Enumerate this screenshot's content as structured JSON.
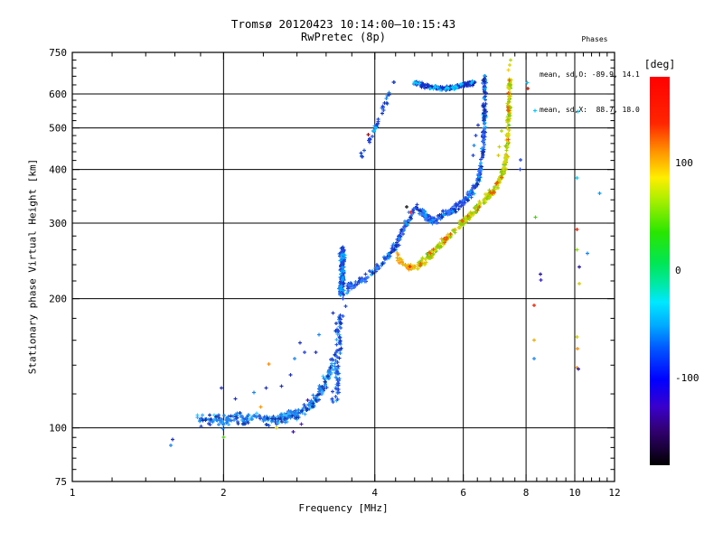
{
  "title": {
    "line1": "Tromsø 20120423 10:14:00–10:15:43",
    "line2": "RwPretec (8p)"
  },
  "annotation": {
    "header": "Phases",
    "line_o": "mean, sd,O: -89.9, 14.1",
    "line_x": "mean, sd,X:  88.7, 18.0"
  },
  "colorbar": {
    "title": "[deg]",
    "range": [
      180,
      -180
    ],
    "ticks": [
      {
        "value": 100,
        "label": "100"
      },
      {
        "value": 0,
        "label": "0"
      },
      {
        "value": -100,
        "label": "-100"
      }
    ],
    "stops": [
      {
        "p": 0,
        "c": "#ff0000"
      },
      {
        "p": 12,
        "c": "#ff2600"
      },
      {
        "p": 19,
        "c": "#ff9000"
      },
      {
        "p": 26,
        "c": "#ffee00"
      },
      {
        "p": 32,
        "c": "#a6ee00"
      },
      {
        "p": 40,
        "c": "#2ae600"
      },
      {
        "p": 48,
        "c": "#00e655"
      },
      {
        "p": 54,
        "c": "#00e8b0"
      },
      {
        "p": 58,
        "c": "#00e8ff"
      },
      {
        "p": 64,
        "c": "#00aaff"
      },
      {
        "p": 70,
        "c": "#0055ff"
      },
      {
        "p": 78,
        "c": "#0000ff"
      },
      {
        "p": 85,
        "c": "#3a00cc"
      },
      {
        "p": 91,
        "c": "#320072"
      },
      {
        "p": 96,
        "c": "#180035"
      },
      {
        "p": 100,
        "c": "#000000"
      }
    ]
  },
  "chart_data": {
    "type": "scatter",
    "xlabel": "Frequency [MHz]",
    "ylabel": "Stationary phase Virtual Height [km]",
    "x_scale": "log",
    "y_scale": "log",
    "xlim": [
      1,
      12
    ],
    "ylim": [
      75,
      750
    ],
    "grid": true,
    "x_ticks": [
      {
        "v": 1,
        "label": "1"
      },
      {
        "v": 2,
        "label": "2"
      },
      {
        "v": 4,
        "label": "4"
      },
      {
        "v": 6,
        "label": "6"
      },
      {
        "v": 8,
        "label": "8"
      },
      {
        "v": 10,
        "label": "10"
      },
      {
        "v": 12,
        "label": "12"
      }
    ],
    "x_minor": [
      1.2,
      1.4,
      1.6,
      1.8,
      2.4,
      2.8,
      3.2,
      3.6,
      4.4,
      4.8,
      5.2,
      5.6,
      6.4,
      6.8,
      7.2,
      7.6,
      8.4,
      8.8,
      9.2,
      9.6,
      10.4,
      10.8,
      11.2,
      11.6
    ],
    "y_ticks": [
      {
        "v": 750,
        "label": "750"
      },
      {
        "v": 600,
        "label": "600"
      },
      {
        "v": 500,
        "label": "500"
      },
      {
        "v": 400,
        "label": "400"
      },
      {
        "v": 300,
        "label": "300"
      },
      {
        "v": 200,
        "label": "200"
      },
      {
        "v": 100,
        "label": "100"
      },
      {
        "v": 75,
        "label": "75"
      }
    ],
    "y_minor": [
      80,
      85,
      90,
      95,
      120,
      140,
      160,
      180,
      220,
      240,
      260,
      280,
      320,
      340,
      360,
      380,
      420,
      440,
      460,
      480,
      520,
      540,
      560,
      580,
      630,
      660,
      690,
      720
    ],
    "x_gridlines": [
      2,
      4,
      6,
      8,
      10
    ],
    "y_gridlines": [
      100,
      200,
      300,
      400,
      500,
      600
    ],
    "traces": [
      {
        "name": "e-region-band",
        "n": 300,
        "jf": 0.012,
        "jh": 0.035,
        "colors": [
          "#1c86ee",
          "#2255dd",
          "#1c86ee",
          "#2244cc",
          "#33ccff",
          "#1c86ee",
          "#1133aa",
          "#2255dd",
          "#33aaff"
        ],
        "anchors": [
          [
            1.78,
            104
          ],
          [
            1.9,
            105
          ],
          [
            2.0,
            103
          ],
          [
            2.1,
            106
          ],
          [
            2.2,
            104
          ],
          [
            2.35,
            107
          ],
          [
            2.5,
            104
          ],
          [
            2.65,
            106
          ],
          [
            2.8,
            108
          ],
          [
            2.95,
            112
          ],
          [
            3.05,
            117
          ],
          [
            3.15,
            124
          ],
          [
            3.25,
            133
          ],
          [
            3.3,
            143
          ]
        ]
      },
      {
        "name": "es-column-lower",
        "n": 85,
        "jf": 0.015,
        "jh": 0.055,
        "colors": [
          "#2244dd",
          "#1c86ee",
          "#1133bb",
          "#2255ee",
          "#33aaff"
        ],
        "anchors": [
          [
            3.32,
            115
          ],
          [
            3.38,
            126
          ],
          [
            3.35,
            140
          ],
          [
            3.4,
            155
          ],
          [
            3.38,
            170
          ],
          [
            3.42,
            183
          ]
        ]
      },
      {
        "name": "es-column-upper",
        "n": 140,
        "jf": 0.012,
        "jh": 0.04,
        "colors": [
          "#2244dd",
          "#1133bb",
          "#2255ee",
          "#1c86ee",
          "#2244dd",
          "#00aaff"
        ],
        "anchors": [
          [
            3.45,
            203
          ],
          [
            3.43,
            214
          ],
          [
            3.46,
            226
          ],
          [
            3.43,
            238
          ],
          [
            3.46,
            250
          ],
          [
            3.44,
            262
          ]
        ]
      },
      {
        "name": "o-mode-trace",
        "n": 430,
        "jf": 0.009,
        "jh": 0.028,
        "colors": [
          "#2244dd",
          "#2244dd",
          "#1133bb",
          "#2255ee",
          "#1c86ee",
          "#2244dd",
          "#0f2fa8",
          "#3377ff",
          "#2244dd",
          "#00aaff"
        ],
        "anchors": [
          [
            3.5,
            210
          ],
          [
            3.7,
            218
          ],
          [
            3.9,
            227
          ],
          [
            4.1,
            239
          ],
          [
            4.3,
            255
          ],
          [
            4.45,
            272
          ],
          [
            4.55,
            290
          ],
          [
            4.7,
            312
          ],
          [
            4.85,
            325
          ],
          [
            5.0,
            317
          ],
          [
            5.1,
            306
          ],
          [
            5.25,
            303
          ],
          [
            5.4,
            310
          ],
          [
            5.6,
            318
          ],
          [
            5.8,
            326
          ],
          [
            6.0,
            336
          ],
          [
            6.2,
            350
          ],
          [
            6.35,
            366
          ],
          [
            6.45,
            386
          ],
          [
            6.52,
            412
          ],
          [
            6.57,
            448
          ],
          [
            6.6,
            495
          ],
          [
            6.62,
            550
          ],
          [
            6.63,
            605
          ],
          [
            6.62,
            642
          ],
          [
            6.59,
            653
          ]
        ]
      },
      {
        "name": "x-mode-hook",
        "n": 34,
        "jf": 0.01,
        "jh": 0.02,
        "colors": [
          "#ffaa00",
          "#ff9100",
          "#e8c000",
          "#d8b000",
          "#ff8800"
        ],
        "anchors": [
          [
            4.42,
            253
          ],
          [
            4.5,
            246
          ],
          [
            4.6,
            240
          ],
          [
            4.72,
            236
          ],
          [
            4.85,
            237
          ]
        ]
      },
      {
        "name": "x-mode-trace",
        "n": 380,
        "jf": 0.009,
        "jh": 0.026,
        "colors": [
          "#d8d800",
          "#c8d400",
          "#a8d000",
          "#8fcc00",
          "#e0c800",
          "#d8d800",
          "#b0d800",
          "#d8d800",
          "#ffaa00",
          "#44bb22",
          "#e86000"
        ],
        "anchors": [
          [
            4.85,
            238
          ],
          [
            5.05,
            247
          ],
          [
            5.25,
            258
          ],
          [
            5.45,
            270
          ],
          [
            5.65,
            281
          ],
          [
            5.9,
            295
          ],
          [
            6.15,
            310
          ],
          [
            6.4,
            325
          ],
          [
            6.65,
            342
          ],
          [
            6.9,
            358
          ],
          [
            7.05,
            372
          ],
          [
            7.18,
            390
          ],
          [
            7.28,
            415
          ],
          [
            7.34,
            455
          ],
          [
            7.38,
            510
          ],
          [
            7.4,
            565
          ],
          [
            7.42,
            615
          ],
          [
            7.43,
            650
          ]
        ]
      },
      {
        "name": "second-hop-trace",
        "n": 36,
        "jf": 0.008,
        "jh": 0.018,
        "colors": [
          "#2244dd",
          "#1c86ee",
          "#1133bb",
          "#2255ee"
        ],
        "anchors": [
          [
            3.72,
            415
          ],
          [
            3.82,
            445
          ],
          [
            3.92,
            475
          ],
          [
            4.0,
            495
          ],
          [
            4.1,
            530
          ],
          [
            4.2,
            570
          ],
          [
            4.3,
            615
          ],
          [
            4.38,
            648
          ]
        ]
      },
      {
        "name": "spread-f-blob",
        "n": 175,
        "jf": 0.012,
        "jh": 0.013,
        "colors": [
          "#2244dd",
          "#1133cc",
          "#1122aa",
          "#1c86ee",
          "#2244dd",
          "#1133cc",
          "#00ccff",
          "#2244dd"
        ],
        "anchors": [
          [
            4.78,
            638
          ],
          [
            5.0,
            629
          ],
          [
            5.2,
            622
          ],
          [
            5.45,
            618
          ],
          [
            5.7,
            621
          ],
          [
            5.95,
            628
          ],
          [
            6.15,
            634
          ],
          [
            6.28,
            637
          ]
        ]
      }
    ],
    "stray_points": [
      [
        1.57,
        91,
        "#1c86ee"
      ],
      [
        1.585,
        94,
        "#2233bb"
      ],
      [
        2.0,
        95,
        "#44dd00"
      ],
      [
        2.37,
        112,
        "#ff9900"
      ],
      [
        2.46,
        141,
        "#ff8800"
      ],
      [
        2.55,
        100,
        "#cccc00"
      ],
      [
        2.86,
        102,
        "#5522cc"
      ],
      [
        2.94,
        116,
        "#4411bb"
      ],
      [
        2.75,
        98,
        "#4411bb"
      ],
      [
        1.98,
        124,
        "#2233bb"
      ],
      [
        2.11,
        117,
        "#2233bb"
      ],
      [
        2.3,
        121,
        "#1c86ee"
      ],
      [
        2.43,
        124,
        "#2233bb"
      ],
      [
        2.61,
        125,
        "#2233bb"
      ],
      [
        2.72,
        133,
        "#2233bb"
      ],
      [
        2.84,
        158,
        "#2233bb"
      ],
      [
        2.9,
        150,
        "#2244dd"
      ],
      [
        2.77,
        145,
        "#1c86ee"
      ],
      [
        3.05,
        150,
        "#2233bb"
      ],
      [
        3.1,
        165,
        "#1c86ee"
      ],
      [
        3.3,
        185,
        "#2233bb"
      ],
      [
        3.5,
        192,
        "#2244dd"
      ],
      [
        3.99,
        492,
        "#00ccff"
      ],
      [
        4.02,
        500,
        "#00ccff"
      ],
      [
        3.88,
        483,
        "#991111"
      ],
      [
        4.63,
        327,
        "#111111"
      ],
      [
        4.72,
        318,
        "#ee2222"
      ],
      [
        4.7,
        238,
        "#ee2222"
      ],
      [
        6.35,
        480,
        "#2244dd"
      ],
      [
        6.3,
        455,
        "#1c86ee"
      ],
      [
        6.42,
        508,
        "#2233bb"
      ],
      [
        6.28,
        432,
        "#2244dd"
      ],
      [
        7.08,
        452,
        "#c8d400"
      ],
      [
        7.15,
        492,
        "#a8d400"
      ],
      [
        7.05,
        432,
        "#d8c800"
      ],
      [
        7.42,
        700,
        "#d4d400"
      ],
      [
        7.46,
        720,
        "#b8d400"
      ],
      [
        7.38,
        682,
        "#ffcc00"
      ],
      [
        8.05,
        638,
        "#00ccff"
      ],
      [
        8.07,
        618,
        "#aa1100"
      ],
      [
        8.33,
        549,
        "#00ccff"
      ],
      [
        10.15,
        546,
        "#00ccff"
      ],
      [
        10.1,
        382,
        "#00ccff"
      ],
      [
        11.2,
        352,
        "#0099ff"
      ],
      [
        8.35,
        310,
        "#55cc22"
      ],
      [
        10.1,
        290,
        "#ee2200"
      ],
      [
        10.1,
        260,
        "#88dd00"
      ],
      [
        10.6,
        255,
        "#1c86ee"
      ],
      [
        10.2,
        237,
        "#221199"
      ],
      [
        10.2,
        217,
        "#cccc00"
      ],
      [
        8.55,
        228,
        "#221199"
      ],
      [
        8.56,
        221,
        "#3322cc"
      ],
      [
        8.3,
        193,
        "#ee2200"
      ],
      [
        8.3,
        160,
        "#eeaa00"
      ],
      [
        8.3,
        145,
        "#1c86ee"
      ],
      [
        10.1,
        163,
        "#cccc00"
      ],
      [
        10.12,
        153,
        "#ff8800"
      ],
      [
        10.1,
        138,
        "#ff8800"
      ],
      [
        10.16,
        137,
        "#221199"
      ],
      [
        7.8,
        421,
        "#2244dd"
      ],
      [
        7.78,
        400,
        "#2244dd"
      ]
    ]
  }
}
